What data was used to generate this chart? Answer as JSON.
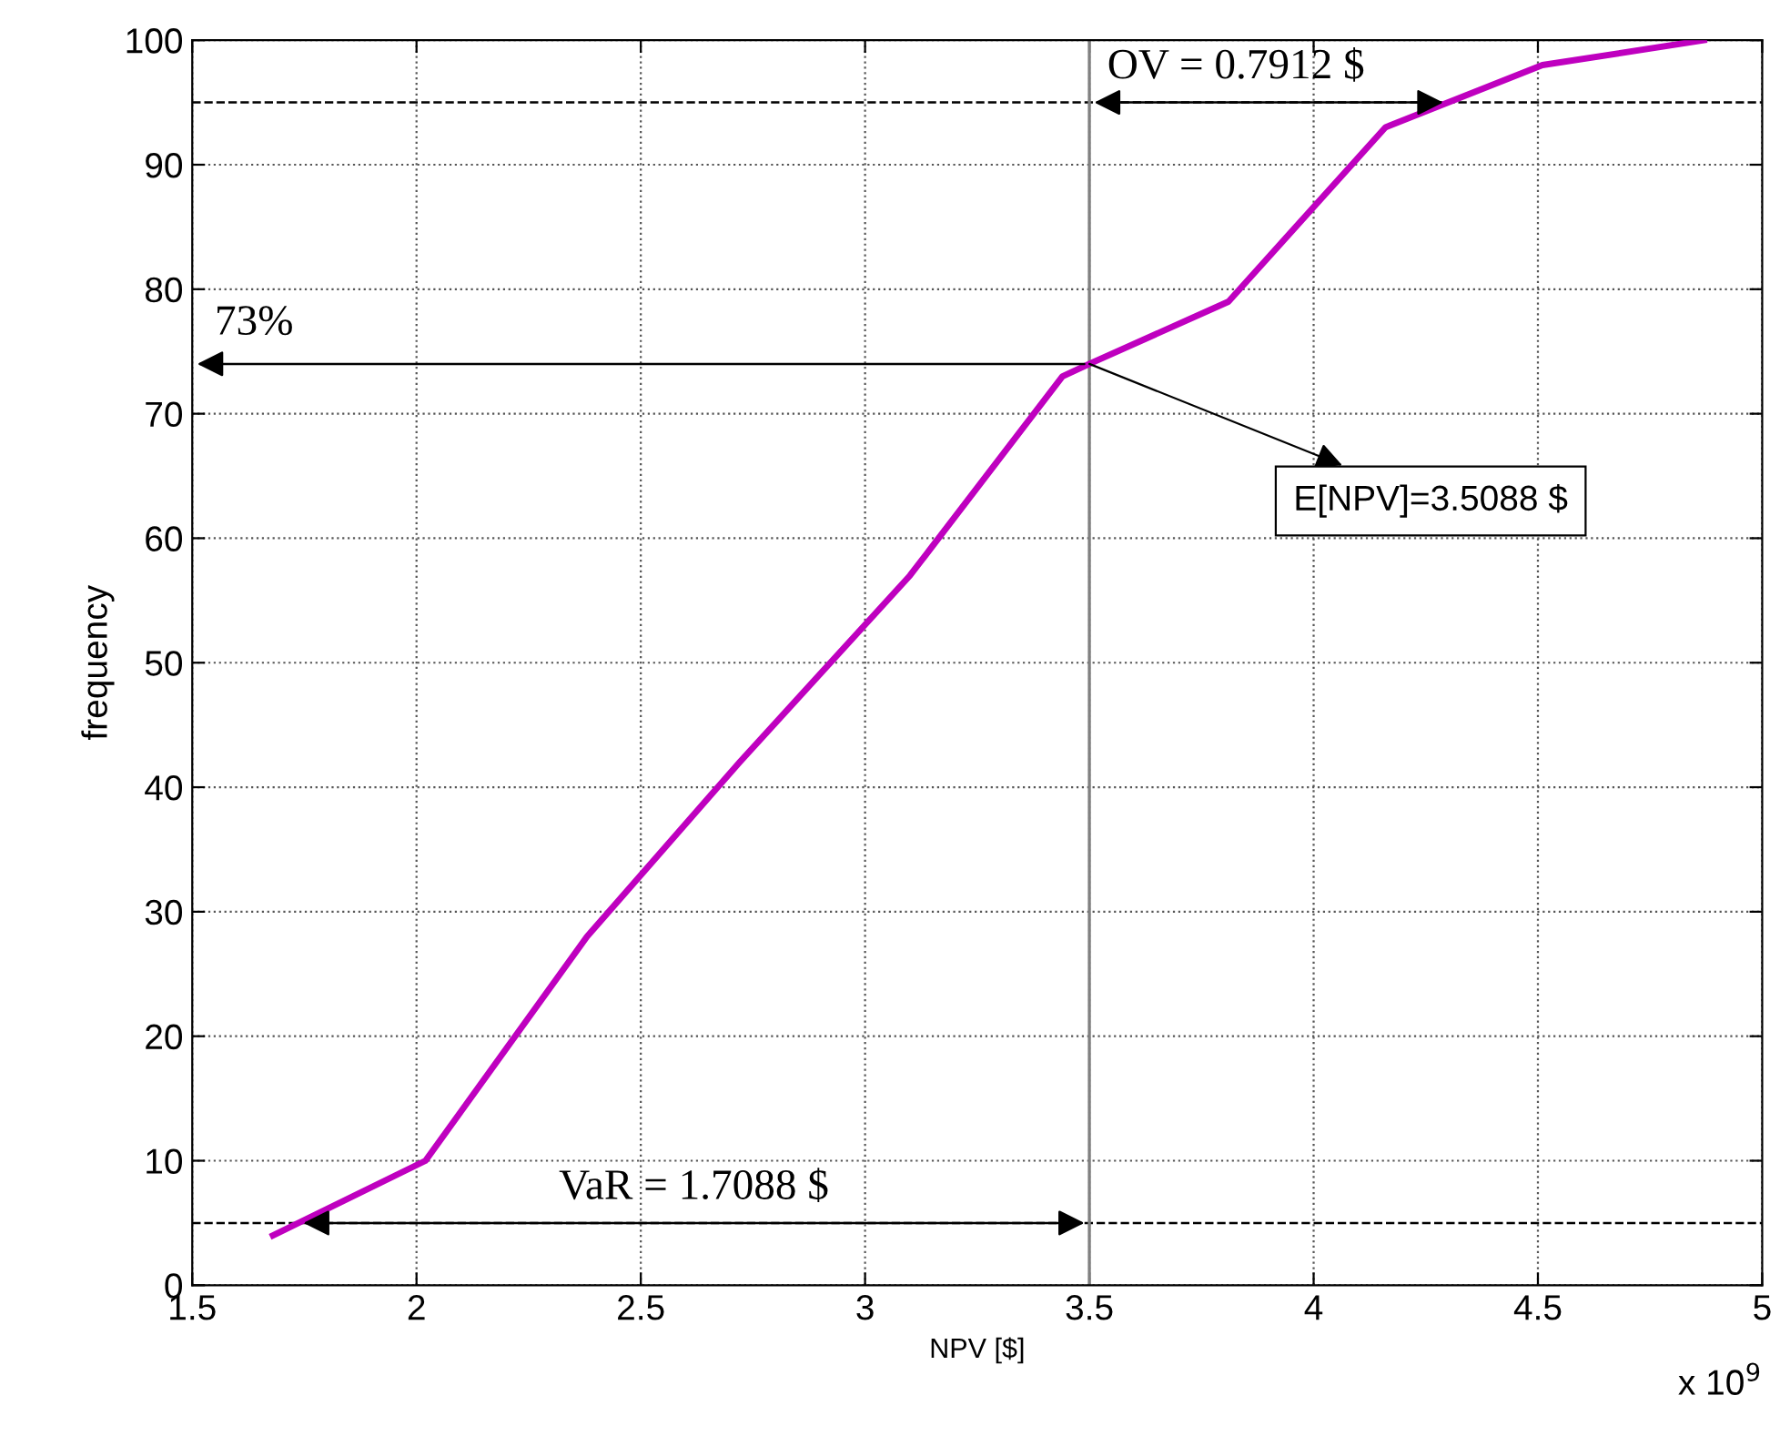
{
  "chart_data": {
    "type": "line",
    "xlabel": "NPV [$]",
    "ylabel": "frequency",
    "x": [
      1.68,
      2.02,
      2.38,
      2.72,
      3.1,
      3.44,
      3.5,
      3.81,
      4.16,
      4.51,
      4.87
    ],
    "series": [
      {
        "color": "#bf00bf",
        "values": [
          4,
          10,
          28,
          42,
          57,
          73,
          74,
          79,
          93,
          98,
          100
        ]
      }
    ],
    "xlim": [
      1.5,
      5
    ],
    "xticks": [
      1.5,
      2,
      2.5,
      3,
      3.5,
      4,
      4.5,
      5
    ],
    "ylim": [
      0,
      100
    ],
    "yticks": [
      0,
      10,
      20,
      30,
      40,
      50,
      60,
      70,
      80,
      90,
      100
    ],
    "grid": true,
    "marker": "none",
    "line_style": "solid",
    "legend": false,
    "ref_lines": [
      {
        "axis": "y",
        "value": 95,
        "color": "#000000",
        "line_style": "dashed"
      },
      {
        "axis": "y",
        "value": 5,
        "color": "#000000",
        "line_style": "dashed"
      },
      {
        "axis": "x",
        "value": 3.5,
        "color": "#808080",
        "line_style": "solid"
      }
    ],
    "annotations": [
      "73%",
      "OV = 0.7912 $",
      "VaR = 1.7088 $",
      {
        "text": "E[NPV]=3.5088 $",
        "x": 3.5,
        "y": 74
      },
      "x 10$^{9}$"
    ]
  }
}
